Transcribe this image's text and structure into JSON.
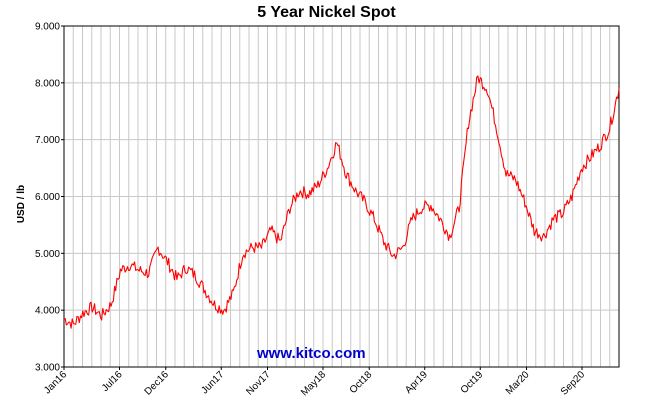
{
  "chart_data": {
    "type": "line",
    "title": "5 Year Nickel Spot",
    "ylabel": "USD / lb",
    "xlabel": "",
    "ylim": [
      3.0,
      9.0
    ],
    "y_ticks": [
      "3.000",
      "4.000",
      "5.000",
      "6.000",
      "7.000",
      "8.000",
      "9.000"
    ],
    "x_ticks": [
      "Jan16",
      "Jul16",
      "Dec16",
      "Jun17",
      "Nov17",
      "May18",
      "Oct18",
      "Apr19",
      "Oct19",
      "Mar20",
      "Sep20"
    ],
    "grid": true,
    "watermark": "www.kitco.com",
    "series": [
      {
        "color": "#ff0000",
        "x": [
          "2016-01",
          "2016-02",
          "2016-03",
          "2016-04",
          "2016-05",
          "2016-06",
          "2016-07",
          "2016-08",
          "2016-09",
          "2016-10",
          "2016-11",
          "2016-12",
          "2017-01",
          "2017-02",
          "2017-03",
          "2017-04",
          "2017-05",
          "2017-06",
          "2017-07",
          "2017-08",
          "2017-09",
          "2017-10",
          "2017-11",
          "2017-12",
          "2018-01",
          "2018-02",
          "2018-03",
          "2018-04",
          "2018-05",
          "2018-06",
          "2018-07",
          "2018-08",
          "2018-09",
          "2018-10",
          "2018-11",
          "2018-12",
          "2019-01",
          "2019-02",
          "2019-03",
          "2019-04",
          "2019-05",
          "2019-06",
          "2019-07",
          "2019-08",
          "2019-09",
          "2019-10",
          "2019-11",
          "2019-12",
          "2020-01",
          "2020-02",
          "2020-03",
          "2020-04",
          "2020-05",
          "2020-06",
          "2020-07",
          "2020-08",
          "2020-09",
          "2020-10",
          "2020-11",
          "2020-12"
        ],
        "values": [
          3.85,
          3.75,
          3.95,
          4.05,
          3.9,
          4.1,
          4.7,
          4.8,
          4.7,
          4.65,
          5.1,
          4.85,
          4.55,
          4.75,
          4.6,
          4.35,
          4.1,
          4.0,
          4.3,
          5.0,
          5.1,
          5.1,
          5.4,
          5.2,
          5.8,
          6.1,
          6.05,
          6.2,
          6.5,
          6.95,
          6.4,
          6.1,
          5.9,
          5.6,
          5.2,
          4.95,
          5.1,
          5.6,
          5.8,
          5.85,
          5.6,
          5.3,
          5.8,
          7.3,
          8.1,
          7.9,
          7.2,
          6.4,
          6.3,
          5.9,
          5.4,
          5.3,
          5.6,
          5.7,
          6.0,
          6.5,
          6.7,
          6.9,
          7.2,
          7.9
        ]
      }
    ]
  }
}
